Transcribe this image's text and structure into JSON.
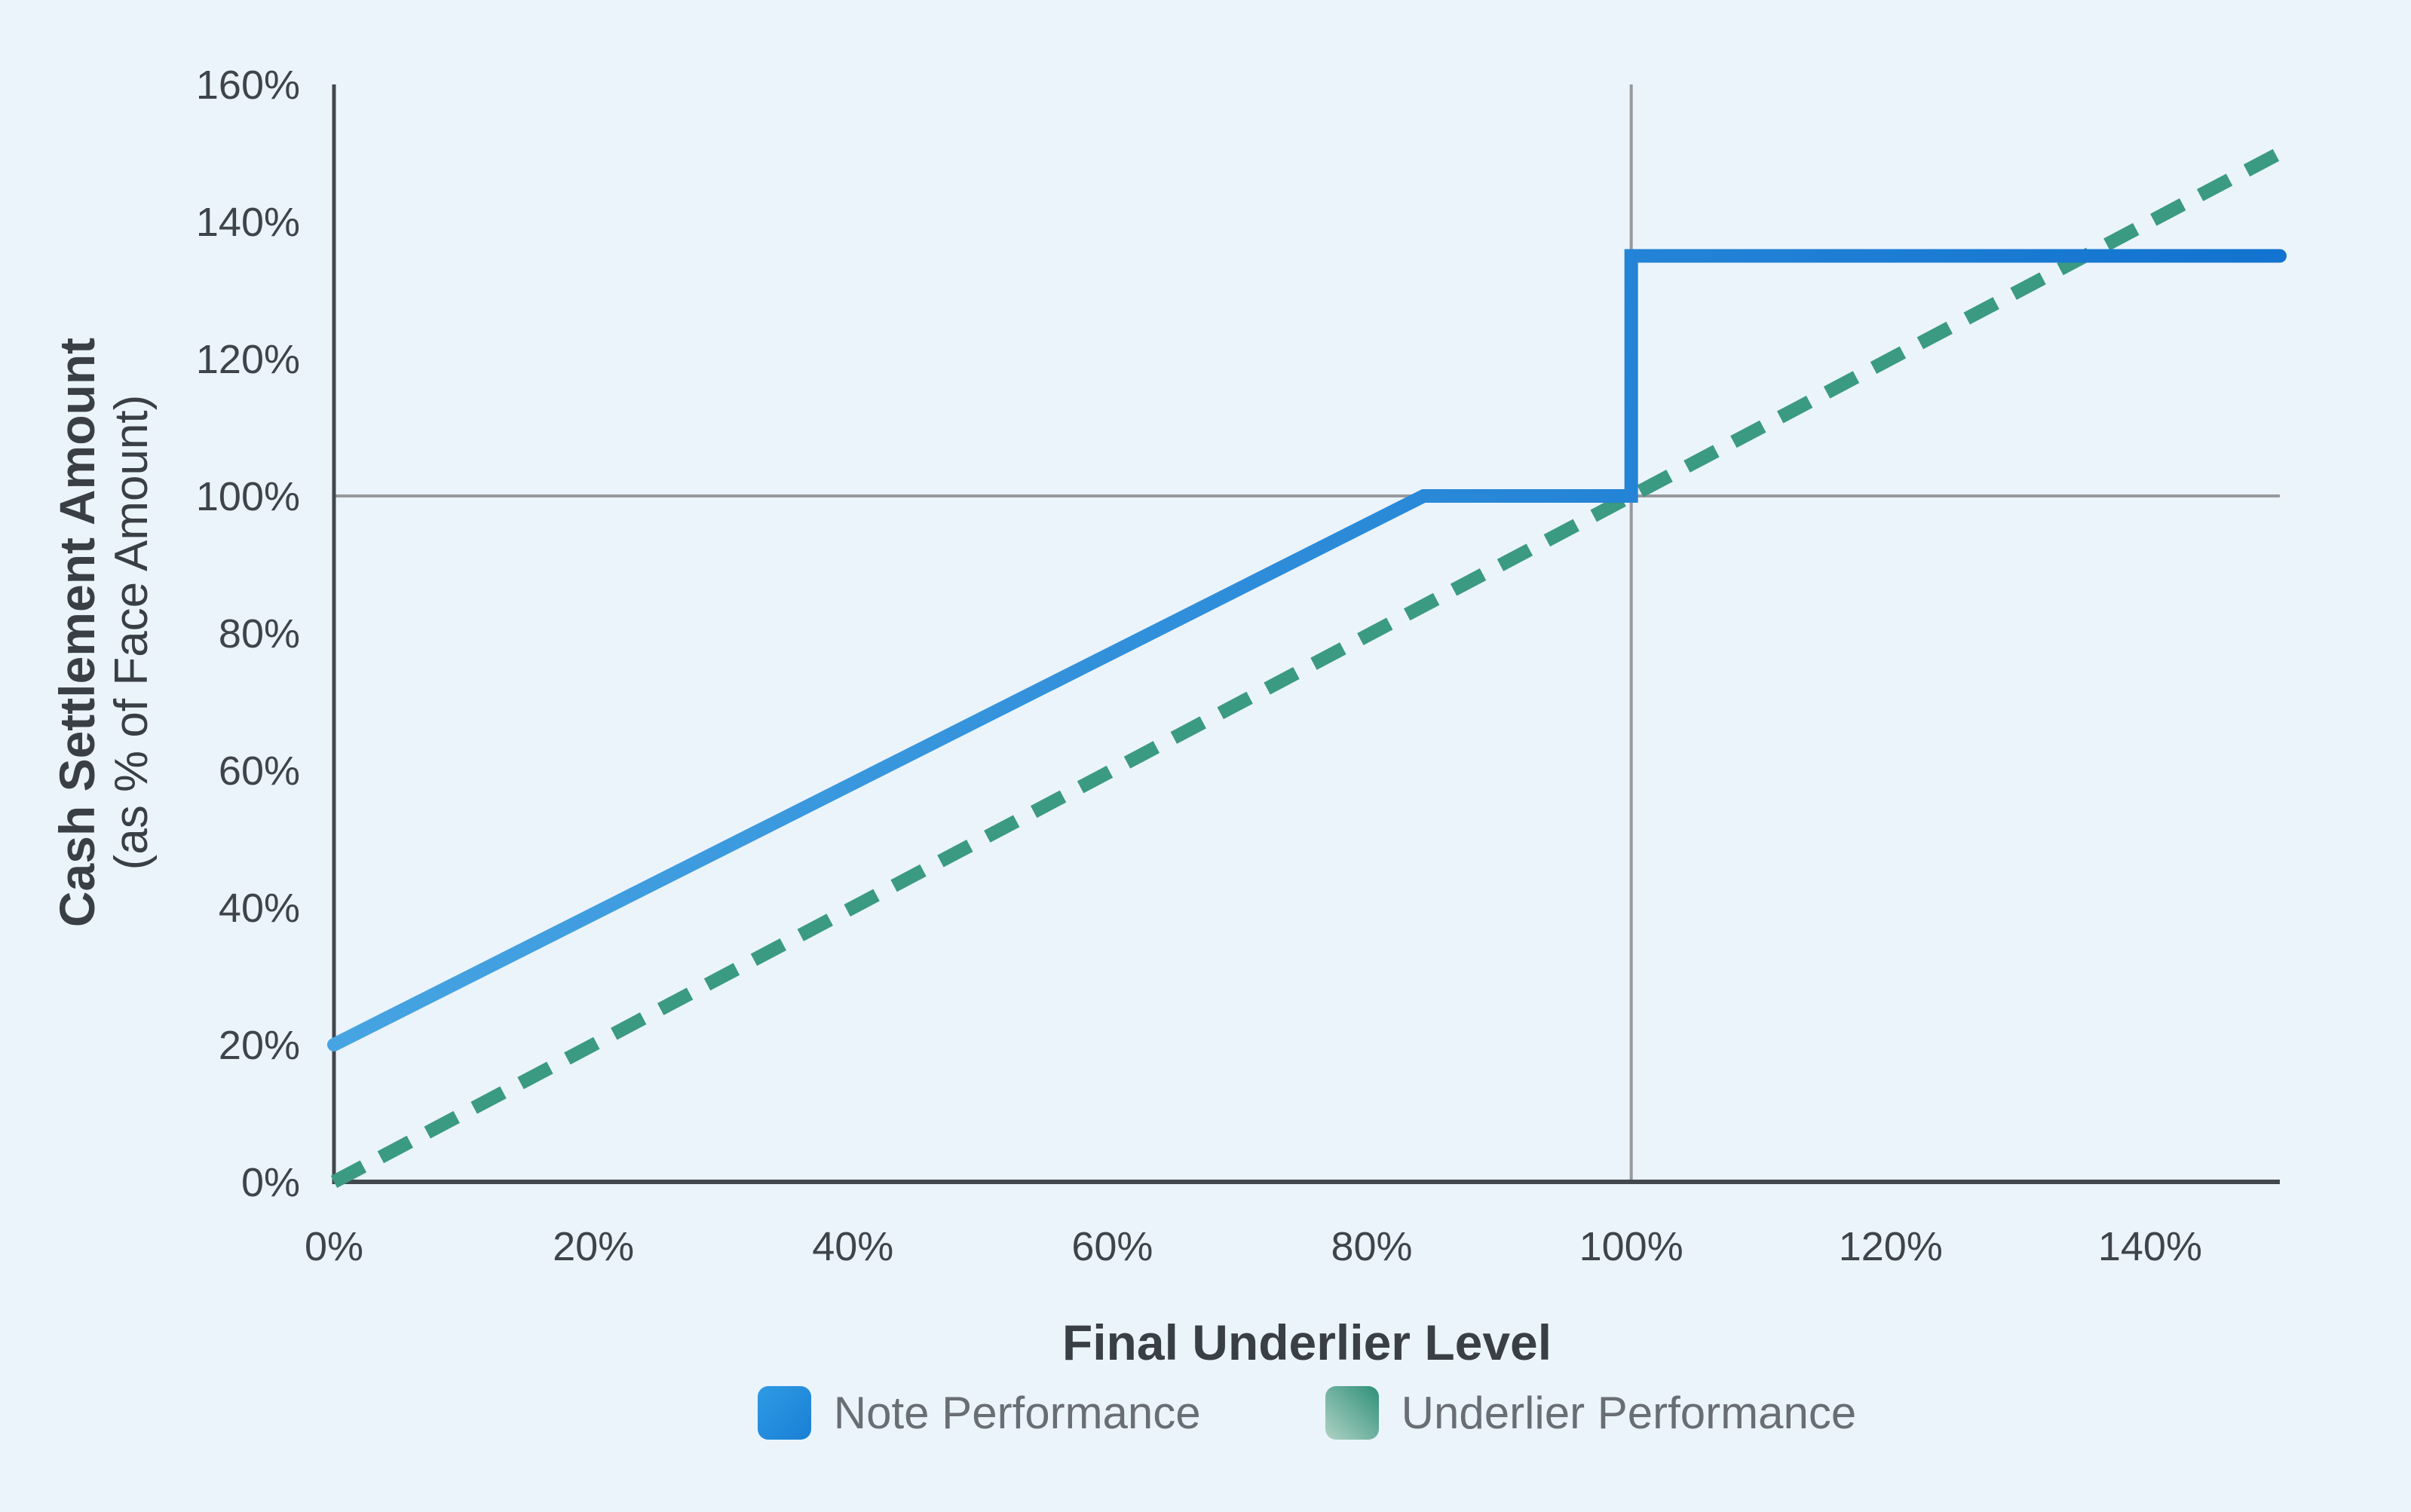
{
  "chart_data": {
    "type": "line",
    "xlabel": "Final Underlier Level",
    "ylabel_line1": "Cash Settlement Amount",
    "ylabel_line2": "(as % of Face Amount)",
    "xlim": [
      0,
      150
    ],
    "ylim": [
      0,
      160
    ],
    "x_ticks": [
      {
        "value": 0,
        "label": "0%"
      },
      {
        "value": 20,
        "label": "20%"
      },
      {
        "value": 40,
        "label": "40%"
      },
      {
        "value": 60,
        "label": "60%"
      },
      {
        "value": 80,
        "label": "80%"
      },
      {
        "value": 100,
        "label": "100%"
      },
      {
        "value": 120,
        "label": "120%"
      },
      {
        "value": 140,
        "label": "140%"
      }
    ],
    "y_ticks": [
      {
        "value": 0,
        "label": "0%"
      },
      {
        "value": 20,
        "label": "20%"
      },
      {
        "value": 40,
        "label": "40%"
      },
      {
        "value": 60,
        "label": "60%"
      },
      {
        "value": 80,
        "label": "80%"
      },
      {
        "value": 100,
        "label": "100%"
      },
      {
        "value": 120,
        "label": "120%"
      },
      {
        "value": 140,
        "label": "140%"
      },
      {
        "value": 160,
        "label": "160%"
      }
    ],
    "grid": "off",
    "reference_lines": {
      "vertical_x": 100,
      "horizontal_y": 100
    },
    "legend_position": "bottom",
    "series": [
      {
        "name": "Note Performance",
        "style": "solid",
        "points": [
          [
            0,
            20
          ],
          [
            84,
            100
          ],
          [
            100,
            100
          ],
          [
            100,
            135
          ],
          [
            150,
            135
          ]
        ]
      },
      {
        "name": "Underlier Performance",
        "style": "dashed",
        "points": [
          [
            0,
            0
          ],
          [
            150,
            150
          ]
        ]
      }
    ],
    "colors": {
      "background": "#EBF4FB",
      "note_line_start": "#47A4E2",
      "note_line_end": "#1273D0",
      "underlier_line": "#3B9A82",
      "axis": "#43474E",
      "grid": "#97999C",
      "tick_text": "#3F444B",
      "title_text": "#3A3F46",
      "legend_text": "#696E75",
      "note_swatch_start": "#2E9BE5",
      "note_swatch_end": "#1A7FD4",
      "underlier_swatch_start": "#AFD2C5",
      "underlier_swatch_end": "#2F9078"
    }
  }
}
